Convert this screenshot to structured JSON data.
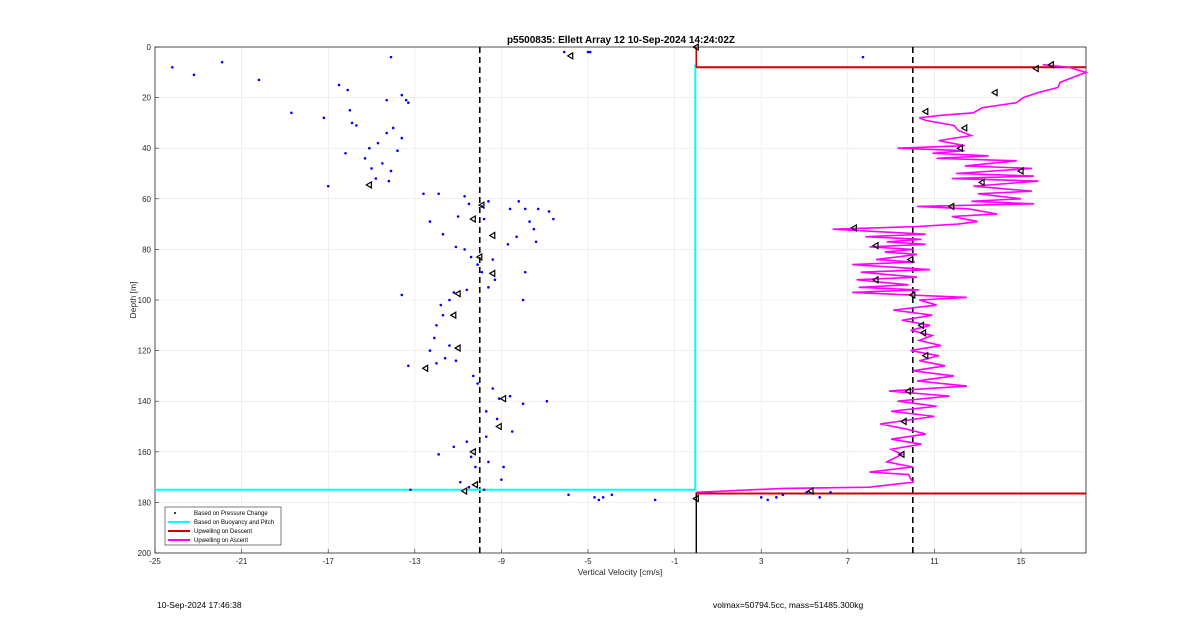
{
  "chart_data": {
    "type": "scatter",
    "title": "p5500835: Ellett Array 12 10-Sep-2024 14:24:02Z",
    "xlabel": "Vertical Velocity [cm/s]",
    "ylabel": "Depth [m]",
    "xlim": [
      -25,
      18
    ],
    "ylim": [
      0,
      200
    ],
    "y_reversed": true,
    "xticks": [
      -25,
      -21,
      -17,
      -13,
      -9,
      -5,
      -1,
      3,
      7,
      11,
      15
    ],
    "yticks": [
      0,
      20,
      40,
      60,
      80,
      100,
      120,
      140,
      160,
      180,
      200
    ],
    "grid": true,
    "legend_position": "bottom-left",
    "reference_lines": [
      {
        "x": -10,
        "style": "dashed",
        "color": "#000000"
      },
      {
        "x": 10,
        "style": "dashed",
        "color": "#000000"
      }
    ],
    "series": [
      {
        "name": "Based on Pressure Change",
        "kind": "points",
        "color": "#0000ff",
        "points": [
          [
            -24.2,
            8
          ],
          [
            -23.2,
            11
          ],
          [
            -21.9,
            6
          ],
          [
            -20.2,
            13
          ],
          [
            -18.7,
            26
          ],
          [
            -17.2,
            28
          ],
          [
            -16.5,
            15
          ],
          [
            -16.1,
            17
          ],
          [
            -16.0,
            25
          ],
          [
            -15.9,
            30
          ],
          [
            -15.7,
            31
          ],
          [
            -14.1,
            4
          ],
          [
            -13.6,
            19
          ],
          [
            -13.4,
            21
          ],
          [
            -13.3,
            22
          ],
          [
            -14.3,
            21
          ],
          [
            -13.6,
            36
          ],
          [
            -14.0,
            32
          ],
          [
            -14.3,
            34
          ],
          [
            -14.7,
            38
          ],
          [
            -15.1,
            40
          ],
          [
            -15.3,
            44
          ],
          [
            -16.2,
            42
          ],
          [
            -17.0,
            55
          ],
          [
            -14.5,
            46
          ],
          [
            -14.1,
            49
          ],
          [
            -14.2,
            53
          ],
          [
            -14.8,
            52
          ],
          [
            -13.8,
            41
          ],
          [
            -15.0,
            48
          ],
          [
            -12.6,
            58
          ],
          [
            -11.9,
            58
          ],
          [
            -10.7,
            59
          ],
          [
            -10.5,
            62
          ],
          [
            -9.9,
            63
          ],
          [
            -9.6,
            61
          ],
          [
            -8.6,
            64
          ],
          [
            -8.2,
            61
          ],
          [
            -7.9,
            64
          ],
          [
            -7.3,
            64
          ],
          [
            -6.8,
            65
          ],
          [
            -6.6,
            68
          ],
          [
            -7.7,
            69
          ],
          [
            -7.5,
            72
          ],
          [
            -8.3,
            75
          ],
          [
            -8.7,
            78
          ],
          [
            -9.8,
            68
          ],
          [
            -11.0,
            67
          ],
          [
            -12.3,
            69
          ],
          [
            -11.7,
            74
          ],
          [
            -11.1,
            79
          ],
          [
            -10.7,
            80
          ],
          [
            -10.4,
            83
          ],
          [
            -10.1,
            86
          ],
          [
            -9.4,
            84
          ],
          [
            -9.9,
            89
          ],
          [
            -9.3,
            92
          ],
          [
            -9.6,
            95
          ],
          [
            -10.6,
            96
          ],
          [
            -11.2,
            97
          ],
          [
            -11.4,
            100
          ],
          [
            -11.8,
            102
          ],
          [
            -11.7,
            106
          ],
          [
            -12.0,
            110
          ],
          [
            -12.1,
            115
          ],
          [
            -11.4,
            118
          ],
          [
            -12.3,
            120
          ],
          [
            -11.6,
            123
          ],
          [
            -12.0,
            125
          ],
          [
            -13.3,
            126
          ],
          [
            -11.1,
            124
          ],
          [
            -10.3,
            130
          ],
          [
            -10.1,
            133
          ],
          [
            -9.4,
            135
          ],
          [
            -9.1,
            139
          ],
          [
            -9.7,
            144
          ],
          [
            -9.2,
            147
          ],
          [
            -8.6,
            138
          ],
          [
            -8.0,
            141
          ],
          [
            -8.5,
            152
          ],
          [
            -9.7,
            154
          ],
          [
            -10.6,
            156
          ],
          [
            -11.2,
            158
          ],
          [
            -11.9,
            161
          ],
          [
            -10.4,
            162
          ],
          [
            -10.2,
            166
          ],
          [
            -9.6,
            164
          ],
          [
            -8.9,
            166
          ],
          [
            -9.0,
            171
          ],
          [
            -9.8,
            175
          ],
          [
            -10.5,
            174
          ],
          [
            -10.9,
            172
          ],
          [
            -13.2,
            175
          ],
          [
            -7.4,
            77
          ],
          [
            -8.0,
            100
          ],
          [
            -13.6,
            98
          ],
          [
            -7.9,
            89
          ],
          [
            -6.9,
            140
          ],
          [
            -5.9,
            177
          ],
          [
            -4.7,
            178
          ],
          [
            -4.5,
            179
          ],
          [
            -4.3,
            178
          ],
          [
            -3.9,
            177
          ],
          [
            -1.9,
            179
          ],
          [
            3.0,
            178
          ],
          [
            3.3,
            179
          ],
          [
            3.7,
            178
          ],
          [
            4.0,
            177
          ],
          [
            5.1,
            176
          ],
          [
            6.2,
            176
          ],
          [
            5.7,
            178
          ],
          [
            -6.1,
            2
          ],
          [
            -5.0,
            2
          ],
          [
            -4.9,
            2
          ],
          [
            7.7,
            4
          ]
        ]
      },
      {
        "name": "Based on Buoyancy and Pitch",
        "kind": "step",
        "color": "#00ffff",
        "depth_start": 175,
        "x_from": -25,
        "x_to": 0,
        "depth_end": 7
      },
      {
        "name": "Upwelling on Descent",
        "kind": "step",
        "color": "#cc0000",
        "depth_start": 8,
        "x_from": 0,
        "x_to": 18,
        "depth_bottom": 176.5
      },
      {
        "name": "Upwelling on Ascent",
        "kind": "line",
        "color": "#ff00ff",
        "points": [
          [
            0,
            176
          ],
          [
            4,
            174.5
          ],
          [
            8,
            174
          ],
          [
            10,
            172
          ],
          [
            9.8,
            169
          ],
          [
            8,
            168
          ],
          [
            10,
            166
          ],
          [
            8.8,
            164
          ],
          [
            9.5,
            161
          ],
          [
            9,
            159
          ],
          [
            10.4,
            157
          ],
          [
            9,
            155
          ],
          [
            10.6,
            153
          ],
          [
            9.7,
            151
          ],
          [
            8.5,
            149
          ],
          [
            11,
            146
          ],
          [
            9,
            144
          ],
          [
            11.1,
            142
          ],
          [
            9.3,
            140
          ],
          [
            11.7,
            138
          ],
          [
            8.9,
            136
          ],
          [
            12.5,
            134
          ],
          [
            10.2,
            132
          ],
          [
            11.9,
            130
          ],
          [
            10,
            128
          ],
          [
            11.5,
            126
          ],
          [
            10.3,
            124
          ],
          [
            11.2,
            122
          ],
          [
            9.9,
            120
          ],
          [
            11.3,
            118
          ],
          [
            10.3,
            116
          ],
          [
            10.9,
            114
          ],
          [
            9.9,
            112
          ],
          [
            10.8,
            110
          ],
          [
            9.5,
            108
          ],
          [
            10.9,
            106
          ],
          [
            9.1,
            104
          ],
          [
            11.1,
            102
          ],
          [
            10.3,
            100
          ],
          [
            12.5,
            99
          ],
          [
            7.2,
            97
          ],
          [
            10.3,
            96
          ],
          [
            7.5,
            95
          ],
          [
            9.8,
            94
          ],
          [
            7.4,
            92
          ],
          [
            10.2,
            91
          ],
          [
            7.6,
            89
          ],
          [
            10.8,
            88
          ],
          [
            7.2,
            86
          ],
          [
            10.1,
            85
          ],
          [
            8.3,
            84
          ],
          [
            10.2,
            82
          ],
          [
            8.7,
            81
          ],
          [
            10.0,
            80
          ],
          [
            8.0,
            79
          ],
          [
            10.6,
            78
          ],
          [
            8.8,
            77
          ],
          [
            10.4,
            76
          ],
          [
            7.8,
            75
          ],
          [
            10.6,
            74
          ],
          [
            6.3,
            72
          ],
          [
            10.1,
            71
          ],
          [
            12.1,
            70
          ],
          [
            13.0,
            69
          ],
          [
            11.8,
            67
          ],
          [
            13.9,
            66
          ],
          [
            12.6,
            64
          ],
          [
            10.2,
            63
          ],
          [
            15.6,
            62
          ],
          [
            12.7,
            61
          ],
          [
            15.0,
            60
          ],
          [
            13.0,
            58
          ],
          [
            15.5,
            57
          ],
          [
            12.8,
            55
          ],
          [
            15.8,
            53
          ],
          [
            11.8,
            52
          ],
          [
            15.6,
            51
          ],
          [
            12.0,
            50
          ],
          [
            15.5,
            48
          ],
          [
            12.4,
            47
          ],
          [
            14.8,
            45
          ],
          [
            11.1,
            44
          ],
          [
            13.5,
            43
          ],
          [
            10.9,
            42
          ],
          [
            12.4,
            41
          ],
          [
            9.3,
            40
          ],
          [
            12.4,
            39
          ],
          [
            11.2,
            37
          ],
          [
            12.7,
            35
          ],
          [
            12.1,
            33
          ],
          [
            11.9,
            31
          ],
          [
            10.6,
            29
          ],
          [
            10.3,
            28
          ],
          [
            11.3,
            27
          ],
          [
            12.8,
            26
          ],
          [
            13.2,
            24
          ],
          [
            14.8,
            22
          ],
          [
            15.1,
            20
          ],
          [
            15.8,
            18
          ],
          [
            16.7,
            16
          ],
          [
            16.8,
            14
          ],
          [
            17.4,
            12
          ],
          [
            18,
            10
          ],
          [
            17.2,
            8
          ],
          [
            16.0,
            7
          ]
        ]
      }
    ],
    "markers": {
      "color": "#000000",
      "points": [
        [
          -5.8,
          3.5
        ],
        [
          -15.1,
          54.5
        ],
        [
          -9.9,
          62.5
        ],
        [
          -10.3,
          68
        ],
        [
          -9.4,
          74.5
        ],
        [
          -10.0,
          83
        ],
        [
          -9.4,
          89.5
        ],
        [
          -11.0,
          97.5
        ],
        [
          -11.2,
          106
        ],
        [
          -11.0,
          119
        ],
        [
          -12.5,
          127
        ],
        [
          -8.9,
          139
        ],
        [
          -9.1,
          150
        ],
        [
          -10.3,
          160
        ],
        [
          -10.2,
          173
        ],
        [
          -10.7,
          175.5
        ],
        [
          0,
          0
        ],
        [
          0,
          178.5
        ],
        [
          16.4,
          7
        ],
        [
          15.7,
          8.5
        ],
        [
          13.8,
          18
        ],
        [
          10.6,
          25.5
        ],
        [
          12.4,
          32
        ],
        [
          12.2,
          40
        ],
        [
          15.0,
          49
        ],
        [
          13.2,
          53.5
        ],
        [
          11.8,
          63
        ],
        [
          7.3,
          71.5
        ],
        [
          8.3,
          78.5
        ],
        [
          9.9,
          84
        ],
        [
          8.3,
          92
        ],
        [
          10.0,
          98
        ],
        [
          10.4,
          110
        ],
        [
          10.5,
          113
        ],
        [
          10.6,
          122
        ],
        [
          9.8,
          136
        ],
        [
          9.6,
          148
        ],
        [
          9.5,
          161
        ],
        [
          5.3,
          175.5
        ]
      ]
    }
  },
  "footer": {
    "timestamp": "10-Sep-2024 17:46:38",
    "stats": "volmax=50794.5cc, mass=51485.300kg"
  }
}
